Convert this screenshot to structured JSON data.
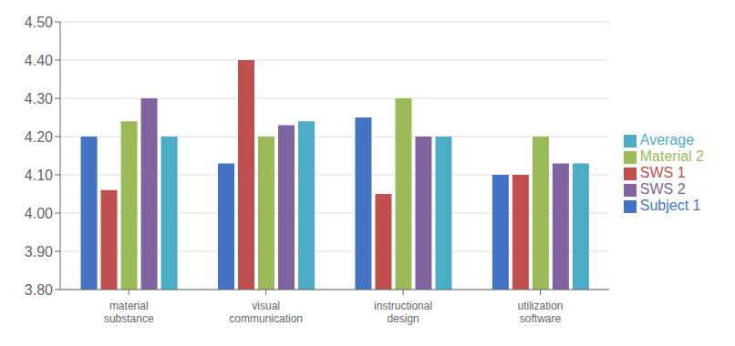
{
  "chart_data": {
    "type": "bar",
    "categories": [
      "material\nsubstance",
      "visual\ncommunication",
      "instructional\ndesign",
      "utilization\nsoftware"
    ],
    "series": [
      {
        "name": "Subject 1",
        "color": "#4472C4",
        "values": [
          4.2,
          4.13,
          4.25,
          4.1
        ]
      },
      {
        "name": "SWS 1",
        "color": "#C0504D",
        "values": [
          4.06,
          4.4,
          4.05,
          4.1
        ]
      },
      {
        "name": "Material 2",
        "color": "#9BBB59",
        "values": [
          4.24,
          4.2,
          4.3,
          4.2
        ]
      },
      {
        "name": "SWS 2",
        "color": "#8064A2",
        "values": [
          4.3,
          4.23,
          4.2,
          4.13
        ]
      },
      {
        "name": "Average",
        "color": "#4BACC6",
        "values": [
          4.2,
          4.24,
          4.2,
          4.13
        ]
      }
    ],
    "ylim": [
      3.8,
      4.5
    ],
    "yticks": [
      {
        "value": 3.8,
        "label": "3.80"
      },
      {
        "value": 3.9,
        "label": "3.90"
      },
      {
        "value": 4.0,
        "label": "4.00"
      },
      {
        "value": 4.1,
        "label": "4.10"
      },
      {
        "value": 4.2,
        "label": "4.20"
      },
      {
        "value": 4.3,
        "label": "4.30"
      },
      {
        "value": 4.4,
        "label": "4.40"
      },
      {
        "value": 4.5,
        "label": "4.50"
      }
    ],
    "grid": true,
    "legend": "right"
  }
}
